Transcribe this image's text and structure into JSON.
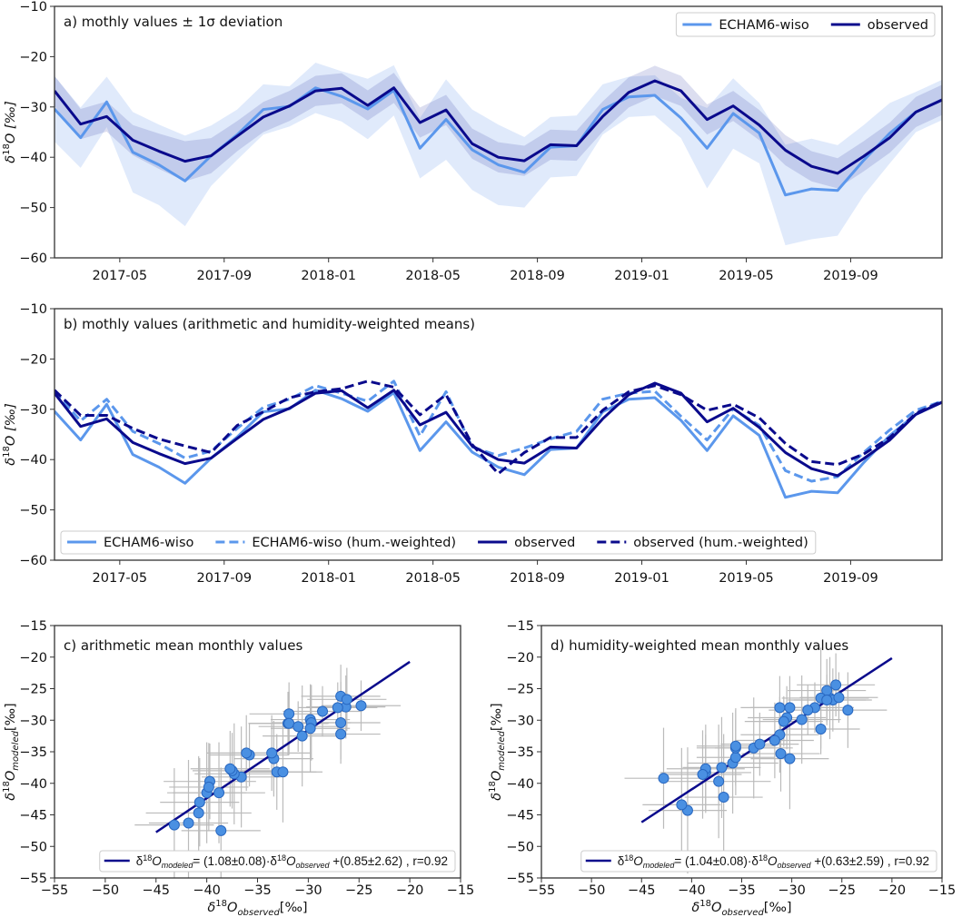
{
  "chart_data": [
    {
      "type": "line",
      "title": "a) mothly values ± 1σ deviation",
      "ylabel": {
        "main": "δ",
        "sup": "18",
        "rest": "O [‰]"
      },
      "ylim": [
        -60,
        -10
      ],
      "yticks": [
        -60,
        -50,
        -40,
        -30,
        -20,
        -10
      ],
      "ytick_labels": [
        "−60",
        "−50",
        "−40",
        "−30",
        "−20",
        "−10"
      ],
      "x_start": "2017-02",
      "x_end": "2019-12",
      "xticks": [
        {
          "label": "2017-05",
          "month_index": 2.5
        },
        {
          "label": "2017-09",
          "month_index": 6.5
        },
        {
          "label": "2018-01",
          "month_index": 10.5
        },
        {
          "label": "2018-05",
          "month_index": 14.5
        },
        {
          "label": "2018-09",
          "month_index": 18.5
        },
        {
          "label": "2019-01",
          "month_index": 22.5
        },
        {
          "label": "2019-05",
          "month_index": 26.5
        },
        {
          "label": "2019-09",
          "month_index": 30.5
        }
      ],
      "legend_position": "top-right",
      "series": [
        {
          "name": "ECHAM6-wiso",
          "color": "#5b97ec",
          "dash": false,
          "values": [
            -30.4,
            -36.1,
            -29.0,
            -39.0,
            -41.5,
            -44.7,
            -39.7,
            -35.5,
            -30.5,
            -29.9,
            -26.2,
            -27.9,
            -30.4,
            -26.7,
            -38.2,
            -32.5,
            -38.5,
            -41.5,
            -43.0,
            -38.0,
            -37.7,
            -30.5,
            -28.0,
            -27.7,
            -32.2,
            -38.2,
            -31.3,
            -35.2,
            -47.5,
            -46.3,
            -46.6,
            -40.6,
            -35.2,
            -31.0,
            -28.6
          ],
          "sigma": [
            6.5,
            6,
            5,
            8,
            8,
            9,
            6,
            5,
            5,
            4,
            5,
            5,
            6,
            5,
            6,
            8,
            8,
            8,
            7,
            6,
            6,
            5,
            4,
            4,
            4,
            8,
            7,
            6,
            10,
            10,
            9,
            7,
            6,
            4,
            4
          ]
        },
        {
          "name": "observed",
          "color": "#0a0a8c",
          "dash": false,
          "values": [
            -26.8,
            -33.4,
            -31.9,
            -36.6,
            -38.8,
            -40.8,
            -39.7,
            -35.8,
            -32.0,
            -29.8,
            -26.8,
            -26.3,
            -29.7,
            -26.2,
            -33.1,
            -30.6,
            -37.3,
            -40.0,
            -40.7,
            -37.5,
            -37.7,
            -31.9,
            -27.1,
            -24.8,
            -26.8,
            -32.5,
            -29.8,
            -33.6,
            -38.6,
            -41.8,
            -43.2,
            -39.8,
            -36.1,
            -31.0,
            -28.6
          ],
          "sigma": [
            3,
            3,
            3,
            3,
            3.5,
            4,
            3.5,
            3,
            3,
            3,
            3,
            3,
            3,
            3,
            3,
            3,
            3,
            3,
            3,
            3,
            3,
            3,
            3,
            3,
            3,
            3,
            3,
            3,
            3,
            3,
            3,
            3,
            3,
            3,
            3
          ]
        }
      ]
    },
    {
      "type": "line",
      "title": "b) mothly values (arithmetic and humidity-weighted means)",
      "ylabel": {
        "main": "δ",
        "sup": "18",
        "rest": "O [‰]"
      },
      "ylim": [
        -60,
        -10
      ],
      "yticks": [
        -60,
        -50,
        -40,
        -30,
        -20,
        -10
      ],
      "ytick_labels": [
        "−60",
        "−50",
        "−40",
        "−30",
        "−20",
        "−10"
      ],
      "x_start": "2017-02",
      "x_end": "2019-12",
      "xticks": [
        {
          "label": "2017-05",
          "month_index": 2.5
        },
        {
          "label": "2017-09",
          "month_index": 6.5
        },
        {
          "label": "2018-01",
          "month_index": 10.5
        },
        {
          "label": "2018-05",
          "month_index": 14.5
        },
        {
          "label": "2018-09",
          "month_index": 18.5
        },
        {
          "label": "2019-01",
          "month_index": 22.5
        },
        {
          "label": "2019-05",
          "month_index": 26.5
        },
        {
          "label": "2019-09",
          "month_index": 30.5
        }
      ],
      "legend_position": "bottom",
      "series": [
        {
          "name": "ECHAM6-wiso",
          "color": "#5b97ec",
          "dash": false,
          "values": [
            -30.4,
            -36.1,
            -29.0,
            -39.0,
            -41.5,
            -44.7,
            -39.7,
            -35.5,
            -30.5,
            -29.9,
            -26.2,
            -27.9,
            -30.4,
            -26.7,
            -38.2,
            -32.5,
            -38.5,
            -41.5,
            -43.0,
            -38.0,
            -37.7,
            -30.5,
            -28.0,
            -27.7,
            -32.2,
            -38.2,
            -31.3,
            -35.2,
            -47.5,
            -46.3,
            -46.6,
            -40.6,
            -35.2,
            -31.0,
            -28.6
          ]
        },
        {
          "name": "ECHAM6-wiso (hum.-weighted)",
          "color": "#5b97ec",
          "dash": true,
          "values": [
            -26.5,
            -32.3,
            -28.0,
            -34.4,
            -36.8,
            -39.7,
            -38.3,
            -33.8,
            -29.6,
            -28.0,
            -25.3,
            -26.8,
            -28.4,
            -24.4,
            -35.3,
            -26.5,
            -37.5,
            -39.2,
            -37.7,
            -35.9,
            -34.4,
            -28.0,
            -26.8,
            -26.4,
            -31.4,
            -36.1,
            -29.9,
            -33.2,
            -42.2,
            -44.3,
            -43.4,
            -38.6,
            -34.1,
            -30.2,
            -28.4
          ]
        },
        {
          "name": "observed",
          "color": "#0a0a8c",
          "dash": false,
          "values": [
            -26.8,
            -33.4,
            -31.9,
            -36.6,
            -38.8,
            -40.8,
            -39.7,
            -35.8,
            -32.0,
            -29.8,
            -26.8,
            -26.3,
            -29.7,
            -26.2,
            -33.1,
            -30.6,
            -37.3,
            -40.0,
            -40.7,
            -37.5,
            -37.7,
            -31.9,
            -27.1,
            -24.8,
            -26.8,
            -32.5,
            -29.8,
            -33.6,
            -38.6,
            -41.8,
            -43.2,
            -39.8,
            -36.1,
            -31.0,
            -28.6
          ]
        },
        {
          "name": "observed (hum.-weighted)",
          "color": "#0a0a8c",
          "dash": true,
          "values": [
            -26.2,
            -31.2,
            -31.2,
            -33.8,
            -35.9,
            -37.3,
            -38.6,
            -33.2,
            -30.5,
            -27.7,
            -26.5,
            -25.9,
            -24.4,
            -25.6,
            -31.1,
            -27.1,
            -37.0,
            -42.8,
            -38.6,
            -35.6,
            -35.6,
            -30.2,
            -26.5,
            -25.3,
            -27.1,
            -30.2,
            -29.0,
            -31.7,
            -36.8,
            -40.4,
            -41.0,
            -38.9,
            -35.6,
            -30.8,
            -28.4
          ]
        }
      ]
    },
    {
      "type": "scatter",
      "title": "c) arithmetic mean monthly values",
      "xlabel": {
        "main": "δ",
        "sup": "18",
        "base": "O",
        "sub": "observed",
        "rest": "[‰]"
      },
      "ylabel": {
        "main": "δ",
        "sup": "18",
        "base": "O",
        "sub": "modeled",
        "rest": "[‰]"
      },
      "xlim": [
        -55,
        -15
      ],
      "ylim": [
        -55,
        -15
      ],
      "xticks": [
        -55,
        -50,
        -45,
        -40,
        -35,
        -30,
        -25,
        -20,
        -15
      ],
      "xtick_labels": [
        "−55",
        "−50",
        "−45",
        "−40",
        "−35",
        "−30",
        "−25",
        "−20",
        "−15"
      ],
      "yticks": [
        -55,
        -50,
        -45,
        -40,
        -35,
        -30,
        -25,
        -20,
        -15
      ],
      "ytick_labels": [
        "−55",
        "−50",
        "−45",
        "−40",
        "−35",
        "−30",
        "−25",
        "−20",
        "−15"
      ],
      "x": [
        -26.8,
        -33.4,
        -31.9,
        -36.6,
        -38.8,
        -40.8,
        -39.7,
        -35.8,
        -32.0,
        -29.8,
        -26.8,
        -26.3,
        -29.7,
        -26.2,
        -33.1,
        -30.6,
        -37.3,
        -40.0,
        -40.7,
        -37.5,
        -37.7,
        -31.9,
        -27.1,
        -24.8,
        -26.8,
        -32.5,
        -29.8,
        -33.6,
        -38.6,
        -41.8,
        -43.2,
        -39.8,
        -36.1,
        -31.0,
        -28.6
      ],
      "y": [
        -30.4,
        -36.1,
        -29.0,
        -39.0,
        -41.5,
        -44.7,
        -39.7,
        -35.5,
        -30.5,
        -29.9,
        -26.2,
        -27.9,
        -30.4,
        -26.7,
        -38.2,
        -32.5,
        -38.5,
        -41.5,
        -43.0,
        -38.0,
        -37.7,
        -30.5,
        -28.0,
        -27.7,
        -32.2,
        -38.2,
        -31.3,
        -35.2,
        -47.5,
        -46.3,
        -46.6,
        -40.6,
        -35.2,
        -31.0,
        -28.6
      ],
      "fit": {
        "slope": 1.08,
        "intercept": 0.85,
        "x_range": [
          -45,
          -20
        ],
        "color": "#0a0a8c"
      },
      "legend": {
        "pre": "δ",
        "sup1": "18",
        "o1": "O",
        "sub1": "modeled",
        "mid": "= (1.08±0.08)·δ",
        "sup2": "18",
        "o2": "O",
        "sub2": "observed",
        "post": " +(0.85±2.62) , r=0.92"
      },
      "legend_position": "bottom"
    },
    {
      "type": "scatter",
      "title": "d) humidity-weighted mean monthly values",
      "xlabel": {
        "main": "δ",
        "sup": "18",
        "base": "O",
        "sub": "observed",
        "rest": "[‰]"
      },
      "ylabel": {
        "main": "δ",
        "sup": "18",
        "base": "O",
        "sub": "modeled",
        "rest": "[‰]"
      },
      "xlim": [
        -55,
        -15
      ],
      "ylim": [
        -55,
        -15
      ],
      "xticks": [
        -55,
        -50,
        -45,
        -40,
        -35,
        -30,
        -25,
        -20,
        -15
      ],
      "xtick_labels": [
        "−55",
        "−50",
        "−45",
        "−40",
        "−35",
        "−30",
        "−25",
        "−20",
        "−15"
      ],
      "yticks": [
        -55,
        -50,
        -45,
        -40,
        -35,
        -30,
        -25,
        -20,
        -15
      ],
      "ytick_labels": [
        "−55",
        "−50",
        "−45",
        "−40",
        "−35",
        "−30",
        "−25",
        "−20",
        "−15"
      ],
      "x": [
        -26.2,
        -31.2,
        -31.2,
        -33.8,
        -35.9,
        -37.3,
        -38.6,
        -33.2,
        -30.5,
        -27.7,
        -26.5,
        -25.9,
        -24.4,
        -25.6,
        -31.1,
        -27.1,
        -37.0,
        -42.8,
        -38.6,
        -35.6,
        -35.6,
        -30.2,
        -26.5,
        -25.3,
        -27.1,
        -30.2,
        -29.0,
        -31.7,
        -36.8,
        -40.4,
        -41.0,
        -38.9,
        -35.6,
        -30.8,
        -28.4
      ],
      "y": [
        -26.5,
        -32.3,
        -28.0,
        -34.4,
        -36.8,
        -39.7,
        -38.3,
        -33.8,
        -29.6,
        -28.0,
        -25.3,
        -26.8,
        -28.4,
        -24.4,
        -35.3,
        -26.5,
        -37.5,
        -39.2,
        -37.7,
        -35.9,
        -34.4,
        -28.0,
        -26.8,
        -26.4,
        -31.4,
        -36.1,
        -29.9,
        -33.2,
        -42.2,
        -44.3,
        -43.4,
        -38.6,
        -34.1,
        -30.2,
        -28.4
      ],
      "fit": {
        "slope": 1.04,
        "intercept": 0.63,
        "x_range": [
          -45,
          -20
        ],
        "color": "#0a0a8c"
      },
      "legend": {
        "pre": "δ",
        "sup1": "18",
        "o1": "O",
        "sub1": "modeled",
        "mid": "= (1.04±0.08)·δ",
        "sup2": "18",
        "o2": "O",
        "sub2": "observed",
        "post": " +(0.63±2.59) , r=0.92"
      },
      "legend_position": "bottom"
    }
  ]
}
